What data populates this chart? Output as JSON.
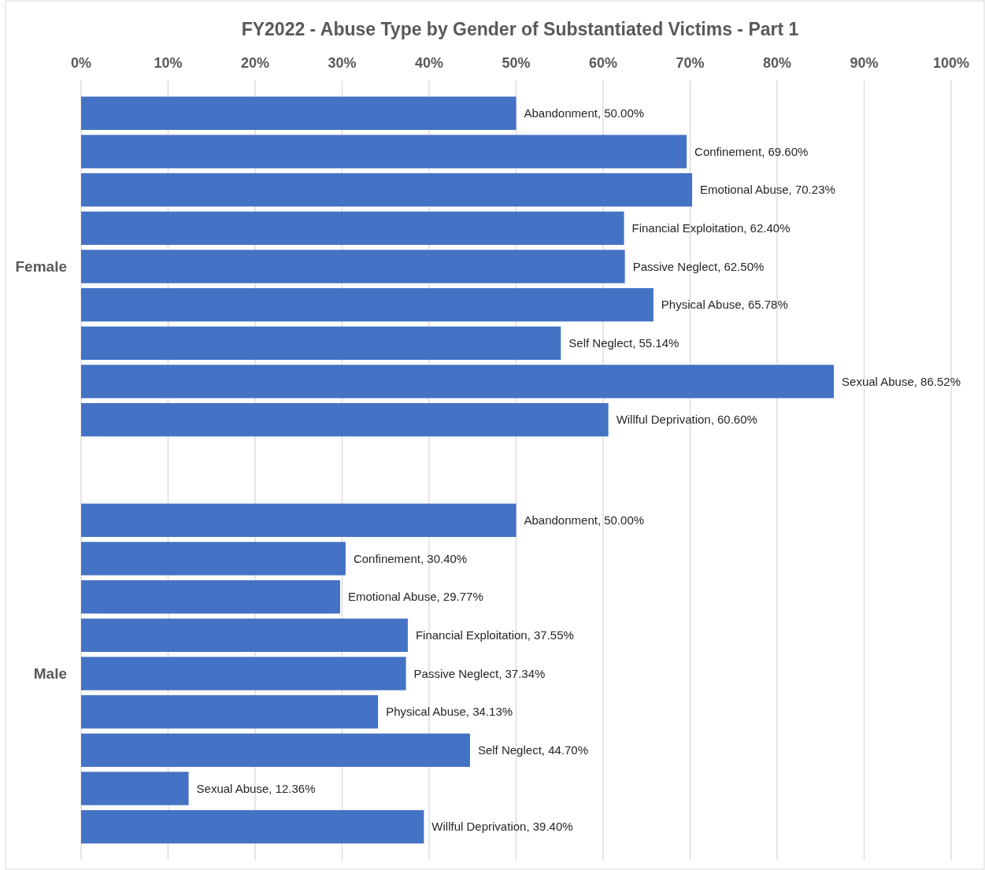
{
  "chart_data": {
    "type": "bar",
    "orientation": "horizontal",
    "title": "FY2022 - Abuse Type by Gender of Substantiated Victims - Part 1",
    "categories": [
      "Female",
      "Male"
    ],
    "series": [
      {
        "color": "#4472c4",
        "values": [
          50.0,
          50.0
        ],
        "value_labels": [
          "Abandonment, 50.00%",
          "Abandonment, 50.00%"
        ]
      },
      {
        "color": "#4472c4",
        "values": [
          69.6,
          30.4
        ],
        "value_labels": [
          "Confinement, 69.60%",
          "Confinement, 30.40%"
        ]
      },
      {
        "color": "#4472c4",
        "values": [
          70.23,
          29.77
        ],
        "value_labels": [
          "Emotional Abuse, 70.23%",
          "Emotional Abuse, 29.77%"
        ]
      },
      {
        "color": "#4472c4",
        "values": [
          62.4,
          37.55
        ],
        "value_labels": [
          "Financial Exploitation, 62.40%",
          "Financial Exploitation, 37.55%"
        ]
      },
      {
        "color": "#4472c4",
        "values": [
          62.5,
          37.34
        ],
        "value_labels": [
          "Passive Neglect, 62.50%",
          "Passive Neglect, 37.34%"
        ]
      },
      {
        "color": "#4472c4",
        "values": [
          65.78,
          34.13
        ],
        "value_labels": [
          "Physical Abuse, 65.78%",
          "Physical Abuse, 34.13%"
        ]
      },
      {
        "color": "#4472c4",
        "values": [
          55.14,
          44.7
        ],
        "value_labels": [
          "Self Neglect, 55.14%",
          "Self Neglect, 44.70%"
        ]
      },
      {
        "color": "#4472c4",
        "values": [
          86.52,
          12.36
        ],
        "value_labels": [
          "Sexual Abuse, 86.52%",
          "Sexual Abuse, 12.36%"
        ]
      },
      {
        "color": "#4472c4",
        "values": [
          60.6,
          39.4
        ],
        "value_labels": [
          "Willful Deprivation, 60.60%",
          "Willful Deprivation, 39.40%"
        ]
      }
    ],
    "xlim": [
      0,
      100
    ],
    "xticks": [
      {
        "value": 0,
        "label": "0%"
      },
      {
        "value": 10,
        "label": "10%"
      },
      {
        "value": 20,
        "label": "20%"
      },
      {
        "value": 30,
        "label": "30%"
      },
      {
        "value": 40,
        "label": "40%"
      },
      {
        "value": 50,
        "label": "50%"
      },
      {
        "value": 60,
        "label": "60%"
      },
      {
        "value": 70,
        "label": "70%"
      },
      {
        "value": 80,
        "label": "80%"
      },
      {
        "value": 90,
        "label": "90%"
      },
      {
        "value": 100,
        "label": "100%"
      }
    ],
    "grid": "x"
  }
}
